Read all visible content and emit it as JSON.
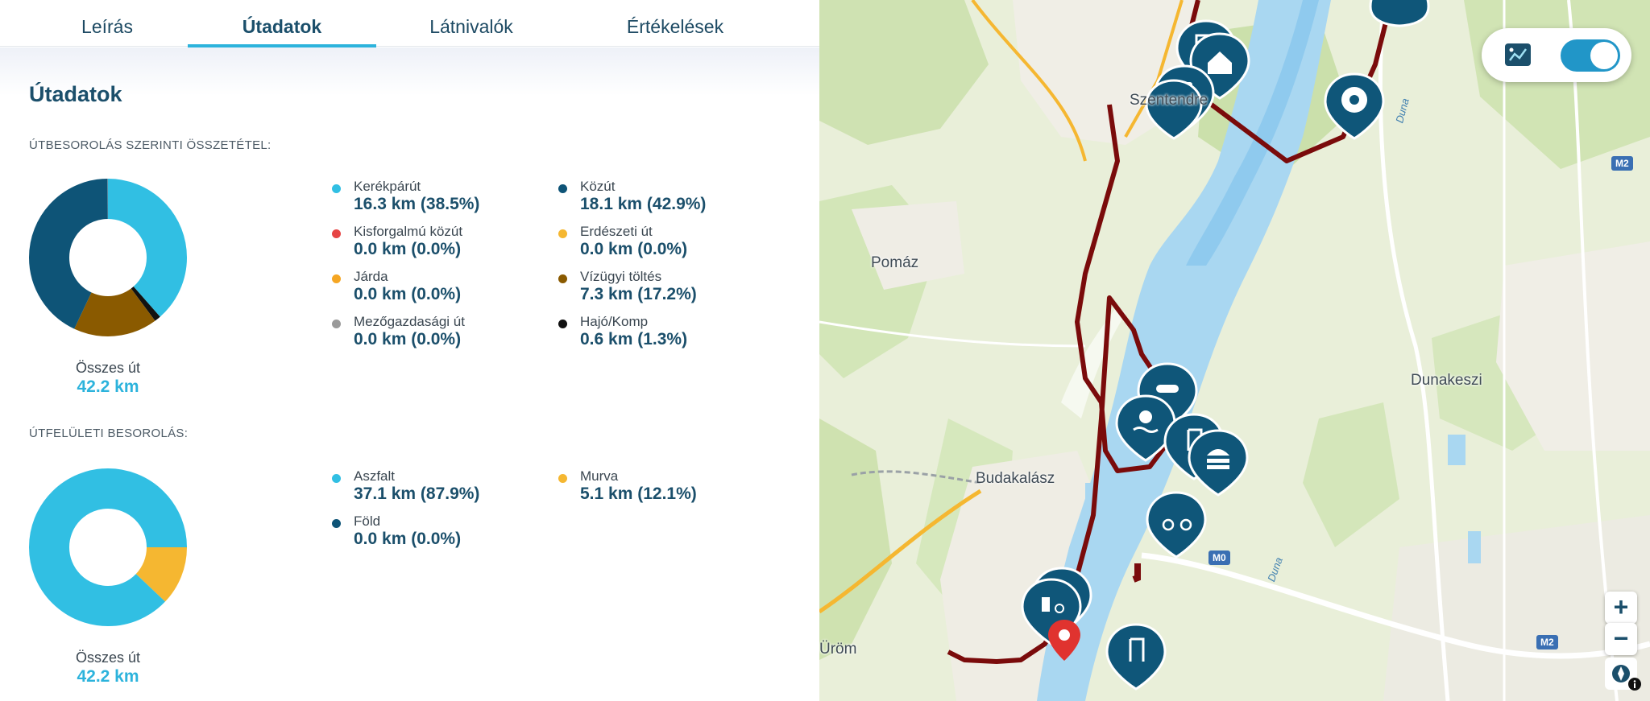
{
  "tabs": [
    {
      "label": "Leírás"
    },
    {
      "label": "Útadatok"
    },
    {
      "label": "Látnivalók"
    },
    {
      "label": "Értékelések"
    }
  ],
  "panel": {
    "title": "Útadatok",
    "road_section": {
      "label": "ÚTBESOROLÁS SZERINTI ÖSSZETÉTEL:",
      "total_label": "Összes út",
      "total_value": "42.2 km",
      "items": [
        {
          "name": "Kerékpárút",
          "amount": "16.3 km (38.5%)",
          "color": "#31bfe3",
          "share": 0.385
        },
        {
          "name": "Közút",
          "amount": "18.1 km (42.9%)",
          "color": "#0e5477",
          "share": 0.429
        },
        {
          "name": "Kisforgalmú közút",
          "amount": "0.0 km (0.0%)",
          "color": "#e64545",
          "share": 0.0
        },
        {
          "name": "Erdészeti út",
          "amount": "0.0 km (0.0%)",
          "color": "#f5b731",
          "share": 0.0
        },
        {
          "name": "Járda",
          "amount": "0.0 km (0.0%)",
          "color": "#f5a623",
          "share": 0.0
        },
        {
          "name": "Vízügyi töltés",
          "amount": "7.3 km (17.2%)",
          "color": "#8a5a00",
          "share": 0.172
        },
        {
          "name": "Mezőgazdasági út",
          "amount": "0.0 km (0.0%)",
          "color": "#9a9a9a",
          "share": 0.0
        },
        {
          "name": "Hajó/Komp",
          "amount": "0.6 km (1.3%)",
          "color": "#111111",
          "share": 0.013
        }
      ]
    },
    "surface_section": {
      "label": "ÚTFELÜLETI BESOROLÁS:",
      "total_label": "Összes út",
      "total_value": "42.2 km",
      "items": [
        {
          "name": "Aszfalt",
          "amount": "37.1 km (87.9%)",
          "color": "#31bfe3",
          "share": 0.879
        },
        {
          "name": "Murva",
          "amount": "5.1 km (12.1%)",
          "color": "#f5b731",
          "share": 0.121
        },
        {
          "name": "Föld",
          "amount": "0.0 km (0.0%)",
          "color": "#0e5477",
          "share": 0.0
        }
      ]
    }
  },
  "map": {
    "places": [
      "Szentendre",
      "Pomáz",
      "Dunakeszi",
      "Budakalász",
      "Üröm"
    ],
    "river_labels": [
      "Duna",
      "Duna"
    ],
    "road_shields": [
      "M2",
      "M0",
      "M2"
    ],
    "controls": {
      "zoom_in": "+",
      "zoom_out": "−"
    }
  }
}
